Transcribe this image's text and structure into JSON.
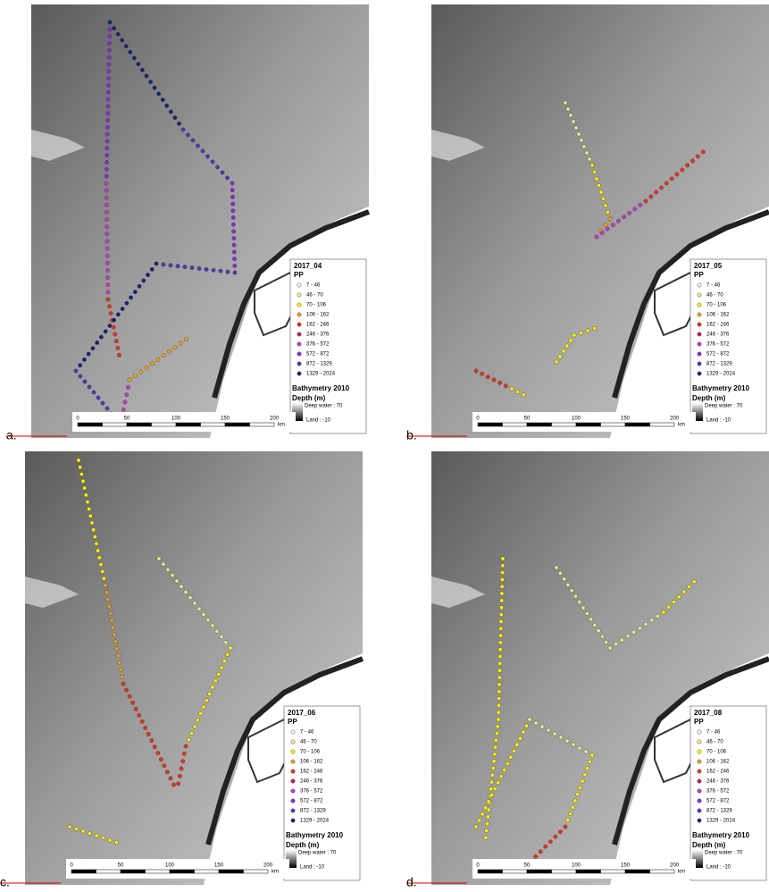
{
  "panels": [
    {
      "label": "a.",
      "legend_title": "2017_04"
    },
    {
      "label": "b.",
      "legend_title": "2017_05"
    },
    {
      "label": "c.",
      "legend_title": "2017_06"
    },
    {
      "label": "d.",
      "legend_title": "2017_08"
    }
  ],
  "legend": {
    "subtitle": "PP",
    "classes": [
      {
        "name": "7 - 46",
        "color": "#f4f4e8"
      },
      {
        "name": "46 - 70",
        "color": "#e2ee8a"
      },
      {
        "name": "70 - 106",
        "color": "#fff200"
      },
      {
        "name": "106 - 162",
        "color": "#f0a020"
      },
      {
        "name": "162 - 246",
        "color": "#e8321e"
      },
      {
        "name": "246 - 376",
        "color": "#c8185a"
      },
      {
        "name": "376 - 572",
        "color": "#c03cc8"
      },
      {
        "name": "572 - 872",
        "color": "#8a2ad8"
      },
      {
        "name": "872 - 1329",
        "color": "#4a3ab8"
      },
      {
        "name": "1329 - 2024",
        "color": "#18207a"
      }
    ]
  },
  "bathymetry": {
    "title": "Bathymetry 2010",
    "depth": "Depth (m)",
    "deep": "Deep water : 70",
    "land": "Land : -10"
  },
  "scale_bar": {
    "ticks": [
      "0",
      "50",
      "100",
      "150",
      "200"
    ],
    "unit": "km"
  }
}
